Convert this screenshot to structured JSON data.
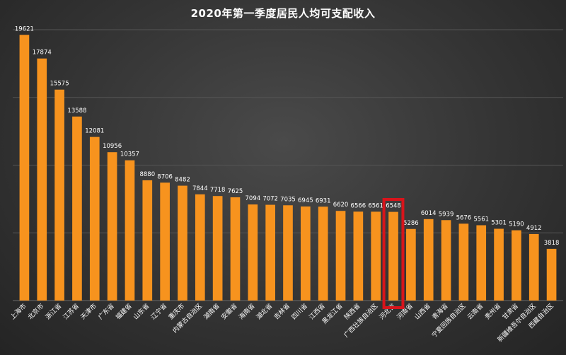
{
  "chart_data": {
    "type": "bar",
    "title": "2020年第一季度居民人均可支配收入",
    "categories": [
      "上海市",
      "北京市",
      "浙江省",
      "江苏省",
      "天津市",
      "广东省",
      "福建省",
      "山东省",
      "辽宁省",
      "重庆市",
      "内蒙古自治区",
      "湖南省",
      "安徽省",
      "海南省",
      "湖北省",
      "吉林省",
      "四川省",
      "江西省",
      "黑龙江省",
      "陕西省",
      "广西壮族自治区",
      "河北省",
      "河南省",
      "山西省",
      "青海省",
      "宁夏回族自治区",
      "云南省",
      "贵州省",
      "甘肃省",
      "新疆维吾尔自治区",
      "西藏自治区"
    ],
    "series": [
      {
        "values": [
          19621,
          17874,
          15575,
          13588,
          12081,
          10956,
          10357,
          8880,
          8706,
          8482,
          7844,
          7718,
          7625,
          7094,
          7072,
          7035,
          6945,
          6931,
          6620,
          6566,
          6561,
          6548,
          5286,
          6014,
          5939,
          5676,
          5561,
          5301,
          5190,
          4912,
          3818
        ]
      }
    ],
    "ylim": [
      0,
      20000
    ],
    "grid": true,
    "highlight_category": "河北省",
    "colors": {
      "bar": "#f7931e",
      "highlight_box": "#d8141b",
      "grid": "#555555"
    }
  }
}
